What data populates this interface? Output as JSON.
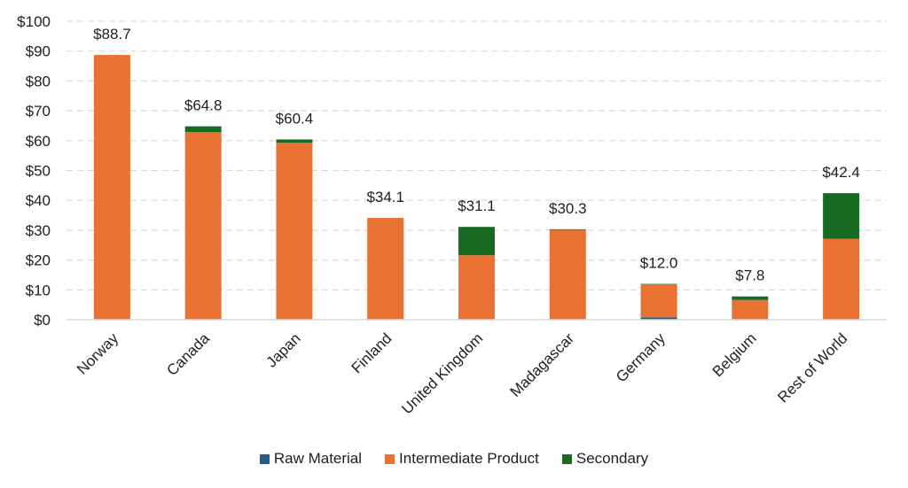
{
  "chart_data": {
    "type": "bar",
    "stacked": true,
    "title": "",
    "xlabel": "",
    "ylabel": "",
    "ylim": [
      0,
      100
    ],
    "yticks": [
      0,
      10,
      20,
      30,
      40,
      50,
      60,
      70,
      80,
      90,
      100
    ],
    "ytick_prefix": "$",
    "grid": "horizontal dashed",
    "legend_position": "bottom",
    "categories": [
      "Norway",
      "Canada",
      "Japan",
      "Finland",
      "United Kingdom",
      "Madagascar",
      "Germany",
      "Belgium",
      "Rest of World"
    ],
    "series": [
      {
        "name": "Raw Material",
        "color": "#1f5f85",
        "values": [
          0,
          0,
          0,
          0,
          0,
          0,
          0.8,
          0,
          0
        ]
      },
      {
        "name": "Intermediate Product",
        "color": "#e97132",
        "values": [
          88.7,
          62.9,
          59.3,
          34.1,
          21.6,
          30.1,
          11.0,
          6.6,
          27.1
        ]
      },
      {
        "name": "Secondary",
        "color": "#196b24",
        "values": [
          0,
          1.9,
          1.1,
          0,
          9.5,
          0.2,
          0.2,
          1.2,
          15.3
        ]
      }
    ],
    "totals": [
      88.7,
      64.8,
      60.4,
      34.1,
      31.1,
      30.3,
      12.0,
      7.8,
      42.4
    ],
    "total_labels": [
      "$88.7",
      "$64.8",
      "$60.4",
      "$34.1",
      "$31.1",
      "$30.3",
      "$12.0",
      "$7.8",
      "$42.4"
    ]
  }
}
